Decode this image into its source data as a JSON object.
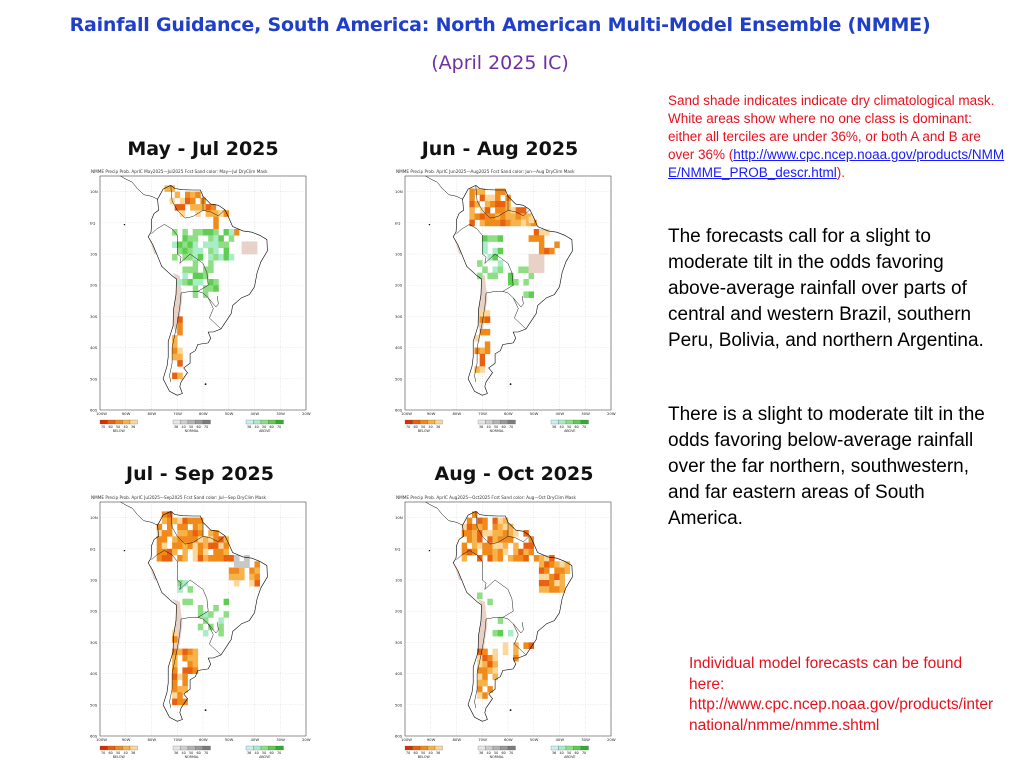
{
  "header": {
    "title": "Rainfall Guidance, South America:  North American Multi-Model Ensemble (NMME)",
    "subtitle": "(April 2025 IC)"
  },
  "panels": [
    {
      "label": "May - Jul 2025",
      "caption": "NMME Precip Prob. AprIC  May2025—Jul2025 Fcst   Sand color: May—Jul DryClim Mask",
      "variant": "mjj"
    },
    {
      "label": "Jun - Aug 2025",
      "caption": "NMME Precip Prob. AprIC  Jun2025—Aug2025 Fcst   Sand color: Jun—Aug DryClim Mask",
      "variant": "jja"
    },
    {
      "label": "Jul - Sep 2025",
      "caption": "NMME Precip Prob. AprIC  Jul2025—Sep2025 Fcst   Sand color: Jul—Sep DryClim Mask",
      "variant": "jas"
    },
    {
      "label": "Aug - Oct 2025",
      "caption": "NMME Precip Prob. AprIC  Aug2025—Oct2025 Fcst   Sand color: Aug—Oct DryClim Mask",
      "variant": "aso"
    }
  ],
  "map": {
    "lat_labels": [
      "10N",
      "EQ",
      "10S",
      "20S",
      "30S",
      "40S",
      "50S",
      "60S"
    ],
    "lon_labels": [
      "100W",
      "90W",
      "80W",
      "70W",
      "60W",
      "50W",
      "40W",
      "30W",
      "20W"
    ],
    "legend_groups": [
      {
        "values": [
          "70",
          "60",
          "50",
          "40",
          "36"
        ],
        "name": "BELOW",
        "colors": [
          "#d73000",
          "#e86010",
          "#f08a1a",
          "#f7b24a",
          "#fbd79a"
        ]
      },
      {
        "values": [
          "36",
          "40",
          "50",
          "60",
          "70"
        ],
        "name": "NORMAL",
        "colors": [
          "#e6e6e6",
          "#cfcfcf",
          "#b4b4b4",
          "#9a9a9a",
          "#7c7c7c"
        ]
      },
      {
        "values": [
          "36",
          "40",
          "50",
          "60",
          "70"
        ],
        "name": "ABOVE",
        "colors": [
          "#c9f0f5",
          "#a8ecc8",
          "#8ede84",
          "#5fcc52",
          "#2fae2f"
        ]
      }
    ]
  },
  "note": {
    "text_before": "Sand shade indicates indicate dry climatological mask. White areas show where no one class is dominant: either all terciles are under 36%, or both A and B are over 36% (",
    "link": "http://www.cpc.ncep.noaa.gov/products/NMME/NMME_PROB_descr.html",
    "text_after": ")."
  },
  "paragraph1": "The forecasts call for a slight to moderate tilt in the odds favoring above-average rainfall over parts of central and western Brazil, southern Peru, Bolivia, and northern Argentina.",
  "paragraph2": "There is a slight to moderate tilt in the odds favoring below-average rainfall over the far northern, southwestern, and far eastern areas of South America.",
  "footer": {
    "line1": "Individual model forecasts can be found here:",
    "url": "http://www.cpc.ncep.noaa.gov/products/international/nmme/nmme.shtml"
  },
  "colors": {
    "title": "#1f3fc9",
    "subtitle": "#7030a0",
    "note": "#e8101e",
    "link": "#1a1aff",
    "below": "#f08a1a",
    "above": "#7fd07a",
    "sand": "#e8d2c8"
  }
}
